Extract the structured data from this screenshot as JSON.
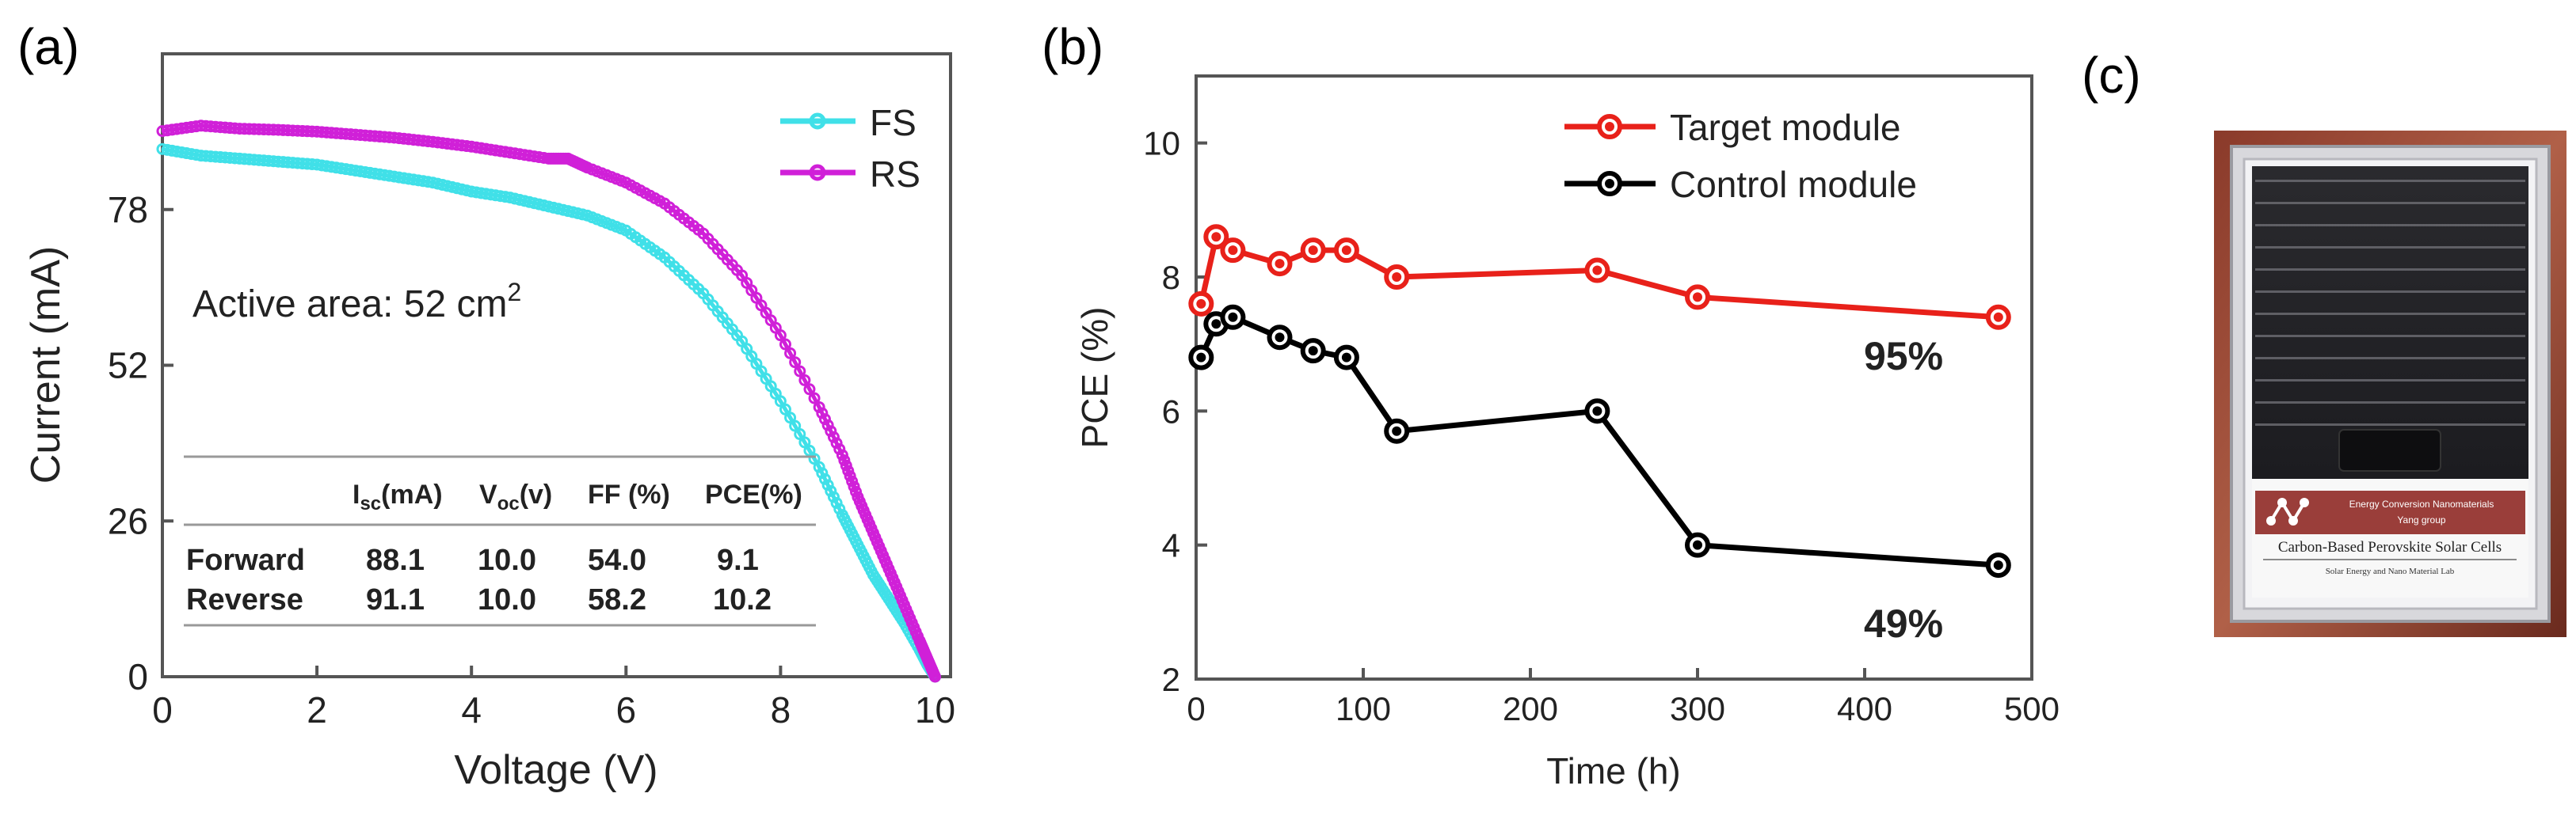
{
  "panels": {
    "a": "(a)",
    "b": "(b)",
    "c": "(c)"
  },
  "chart_data": [
    {
      "type": "line",
      "title": "",
      "xlabel": "Voltage (V)",
      "ylabel": "Current (mA)",
      "xlim": [
        0,
        10.2
      ],
      "ylim": [
        0,
        104
      ],
      "xticks": [
        0,
        2,
        4,
        6,
        8,
        10
      ],
      "yticks": [
        0,
        26,
        52,
        78
      ],
      "legend_position": "top-right",
      "annotation": {
        "text": "Active area: 52 cm",
        "superscript": "2"
      },
      "series": [
        {
          "name": "FS",
          "color": "#40e0e8",
          "x": [
            0,
            0.5,
            1,
            1.5,
            2,
            2.5,
            3,
            3.5,
            4,
            4.5,
            5,
            5.5,
            6,
            6.5,
            7,
            7.5,
            8,
            8.5,
            8.8,
            9,
            9.2,
            9.4,
            9.6,
            9.8,
            9.9,
            10.0
          ],
          "y": [
            88.1,
            87,
            86.5,
            86,
            85.5,
            84.5,
            83.5,
            82.5,
            81,
            80,
            78.5,
            77,
            74.5,
            70,
            64,
            56,
            46,
            35,
            27,
            22,
            17,
            13,
            9,
            4.5,
            2,
            0
          ]
        },
        {
          "name": "RS",
          "color": "#d020d8",
          "x": [
            0,
            0.5,
            1,
            1.5,
            2,
            2.5,
            3,
            3.5,
            4,
            4.5,
            5,
            5.25,
            5.5,
            6,
            6.5,
            7,
            7.5,
            8,
            8.5,
            8.8,
            9,
            9.2,
            9.4,
            9.6,
            9.8,
            9.9,
            10.0
          ],
          "y": [
            91.1,
            92,
            91.5,
            91.3,
            91,
            90.5,
            90,
            89.3,
            88.5,
            87.5,
            86.5,
            86.5,
            85,
            82.5,
            79,
            74,
            67,
            57,
            45,
            37,
            30,
            24,
            18,
            12,
            6,
            3,
            0
          ]
        }
      ],
      "table": {
        "headers": [
          "",
          "I",
          "V",
          "FF (%)",
          "PCE(%)"
        ],
        "header_subs": [
          "",
          "sc",
          "oc",
          "",
          ""
        ],
        "header_units": [
          "",
          "(mA)",
          "(v)",
          "",
          ""
        ],
        "rows": [
          [
            "Forward",
            "88.1",
            "10.0",
            "54.0",
            "9.1"
          ],
          [
            "Reverse",
            "91.1",
            "10.0",
            "58.2",
            "10.2"
          ]
        ]
      }
    },
    {
      "type": "line",
      "title": "",
      "xlabel": "Time (h)",
      "ylabel": "PCE (%)",
      "xlim": [
        0,
        500
      ],
      "ylim": [
        2,
        11
      ],
      "xticks": [
        0,
        100,
        200,
        300,
        400,
        500
      ],
      "yticks": [
        2,
        4,
        6,
        8,
        10
      ],
      "legend_position": "top-right",
      "series": [
        {
          "name": "Target module",
          "color": "#e8211a",
          "x": [
            3,
            12,
            22,
            50,
            70,
            90,
            120,
            240,
            300,
            480
          ],
          "y": [
            7.6,
            8.6,
            8.4,
            8.2,
            8.4,
            8.4,
            8.0,
            8.1,
            7.7,
            7.4
          ]
        },
        {
          "name": "Control module",
          "color": "#000000",
          "x": [
            3,
            12,
            22,
            50,
            70,
            90,
            120,
            240,
            300,
            480
          ],
          "y": [
            6.8,
            7.3,
            7.4,
            7.1,
            6.9,
            6.8,
            5.7,
            6.0,
            4.0,
            3.7
          ]
        }
      ],
      "annotations": [
        "95%",
        "49%"
      ]
    }
  ],
  "photo": {
    "label_line1": "Energy Conversion Nanomaterials",
    "label_line2": "Yang group",
    "label_title": "Carbon-Based Perovskite Solar Cells",
    "label_footer": "Solar Energy and Nano Material Lab"
  }
}
